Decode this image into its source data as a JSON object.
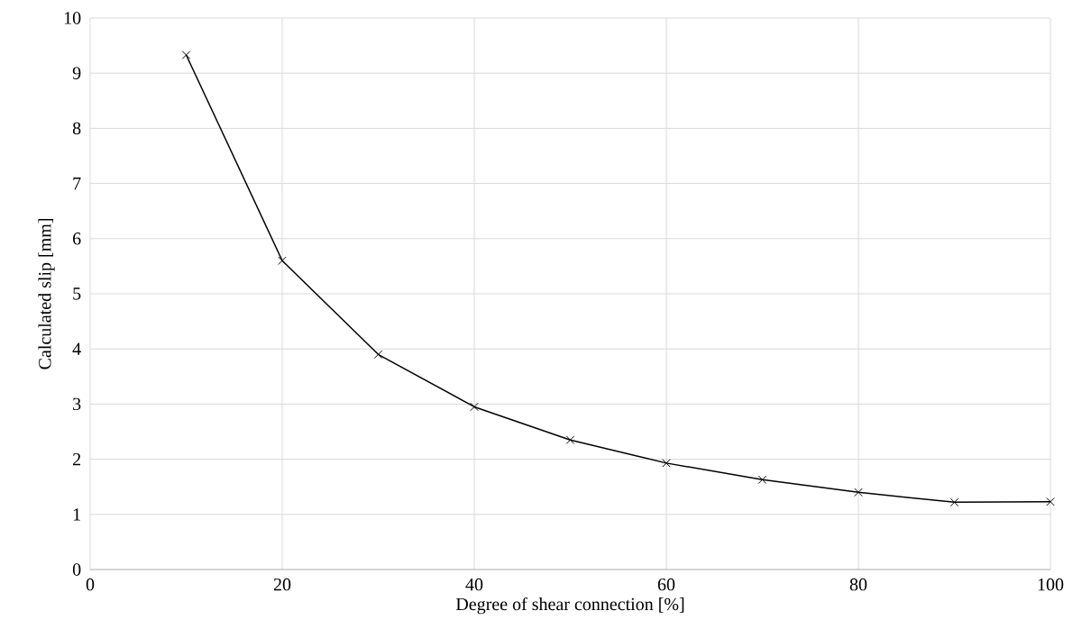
{
  "chart_data": {
    "type": "line",
    "xlabel": "Degree of shear connection [%]",
    "ylabel": "Calculated slip [mm]",
    "x": [
      10,
      20,
      30,
      40,
      50,
      60,
      70,
      80,
      90,
      100
    ],
    "series": [
      {
        "color": "#000000",
        "values": [
          9.33,
          5.6,
          3.9,
          2.95,
          2.35,
          1.93,
          1.63,
          1.4,
          1.22,
          1.23
        ]
      }
    ],
    "xlim": [
      0,
      100
    ],
    "xticks": [
      0,
      20,
      40,
      60,
      80,
      100
    ],
    "ylim": [
      0,
      10
    ],
    "yticks": [
      0,
      1,
      2,
      3,
      4,
      5,
      6,
      7,
      8,
      9,
      10
    ],
    "grid": true,
    "marker": "cross",
    "line_style": "solid"
  }
}
